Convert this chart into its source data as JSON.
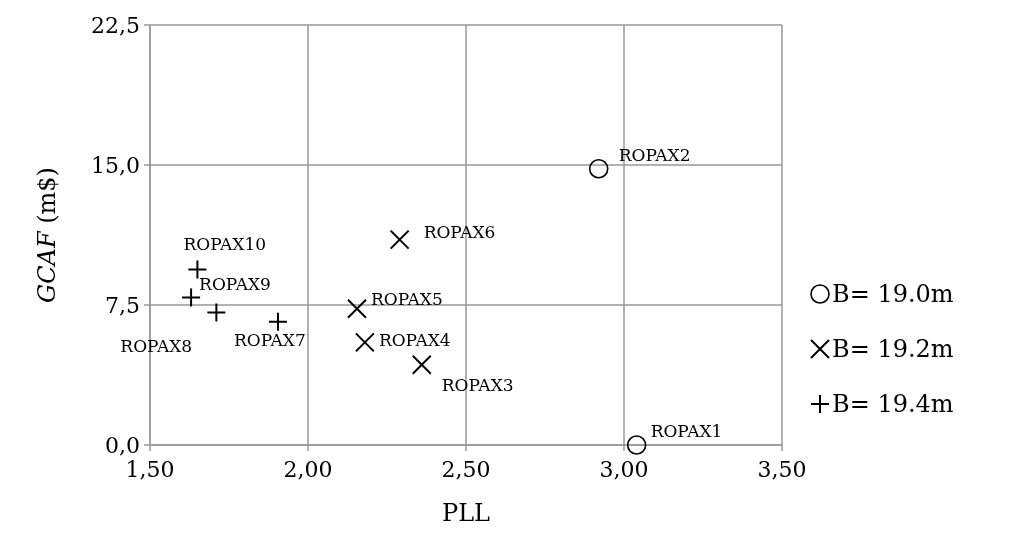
{
  "chart_data": {
    "type": "scatter",
    "xlabel": "PLL",
    "ylabel": "GCAF (m$)",
    "xlim": [
      1.5,
      3.5
    ],
    "xticks": [
      {
        "value": 1.5,
        "label": "1,50"
      },
      {
        "value": 2,
        "label": "2,00"
      },
      {
        "value": 2.5,
        "label": "2,50"
      },
      {
        "value": 3,
        "label": "3,00"
      },
      {
        "value": 3.5,
        "label": "3,50"
      }
    ],
    "ylim": [
      0,
      22.5
    ],
    "yticks": [
      {
        "value": 0,
        "label": "0,0"
      },
      {
        "value": 7.5,
        "label": "7,5"
      },
      {
        "value": 15,
        "label": "15,0"
      },
      {
        "value": 22.5,
        "label": "22,5"
      }
    ],
    "grid": true,
    "legend": "right",
    "series": [
      {
        "name": "B= 19.0m",
        "color": "#000000",
        "marker": "circle",
        "x": [
          3.04,
          2.92
        ],
        "values": [
          0,
          14.8
        ]
      },
      {
        "name": "B= 19.2m",
        "color": "#000000",
        "marker": "x",
        "x": [
          2.36,
          2.18,
          2.155,
          2.29
        ],
        "values": [
          4.3,
          5.5,
          7.3,
          11.0
        ]
      },
      {
        "name": "B= 19.4m",
        "color": "#000000",
        "marker": "cross",
        "x": [
          1.905,
          1.71,
          1.63,
          1.65
        ],
        "values": [
          6.6,
          7.1,
          7.9,
          9.4
        ]
      }
    ],
    "annotations": [
      {
        "text": "ROPAX1",
        "x": 3.04,
        "y": 0
      },
      {
        "text": "ROPAX2",
        "x": 2.92,
        "y": 14.8
      },
      {
        "text": "ROPAX3",
        "x": 2.36,
        "y": 4.3
      },
      {
        "text": "ROPAX4",
        "x": 2.18,
        "y": 5.5
      },
      {
        "text": "ROPAX5",
        "x": 2.155,
        "y": 7.3
      },
      {
        "text": "ROPAX6",
        "x": 2.29,
        "y": 11.0
      },
      {
        "text": "ROPAX7",
        "x": 1.905,
        "y": 6.6
      },
      {
        "text": "ROPAX8",
        "x": 1.71,
        "y": 7.1
      },
      {
        "text": "ROPAX9",
        "x": 1.63,
        "y": 7.9
      },
      {
        "text": "ROPAX10",
        "x": 1.65,
        "y": 9.4
      }
    ]
  }
}
